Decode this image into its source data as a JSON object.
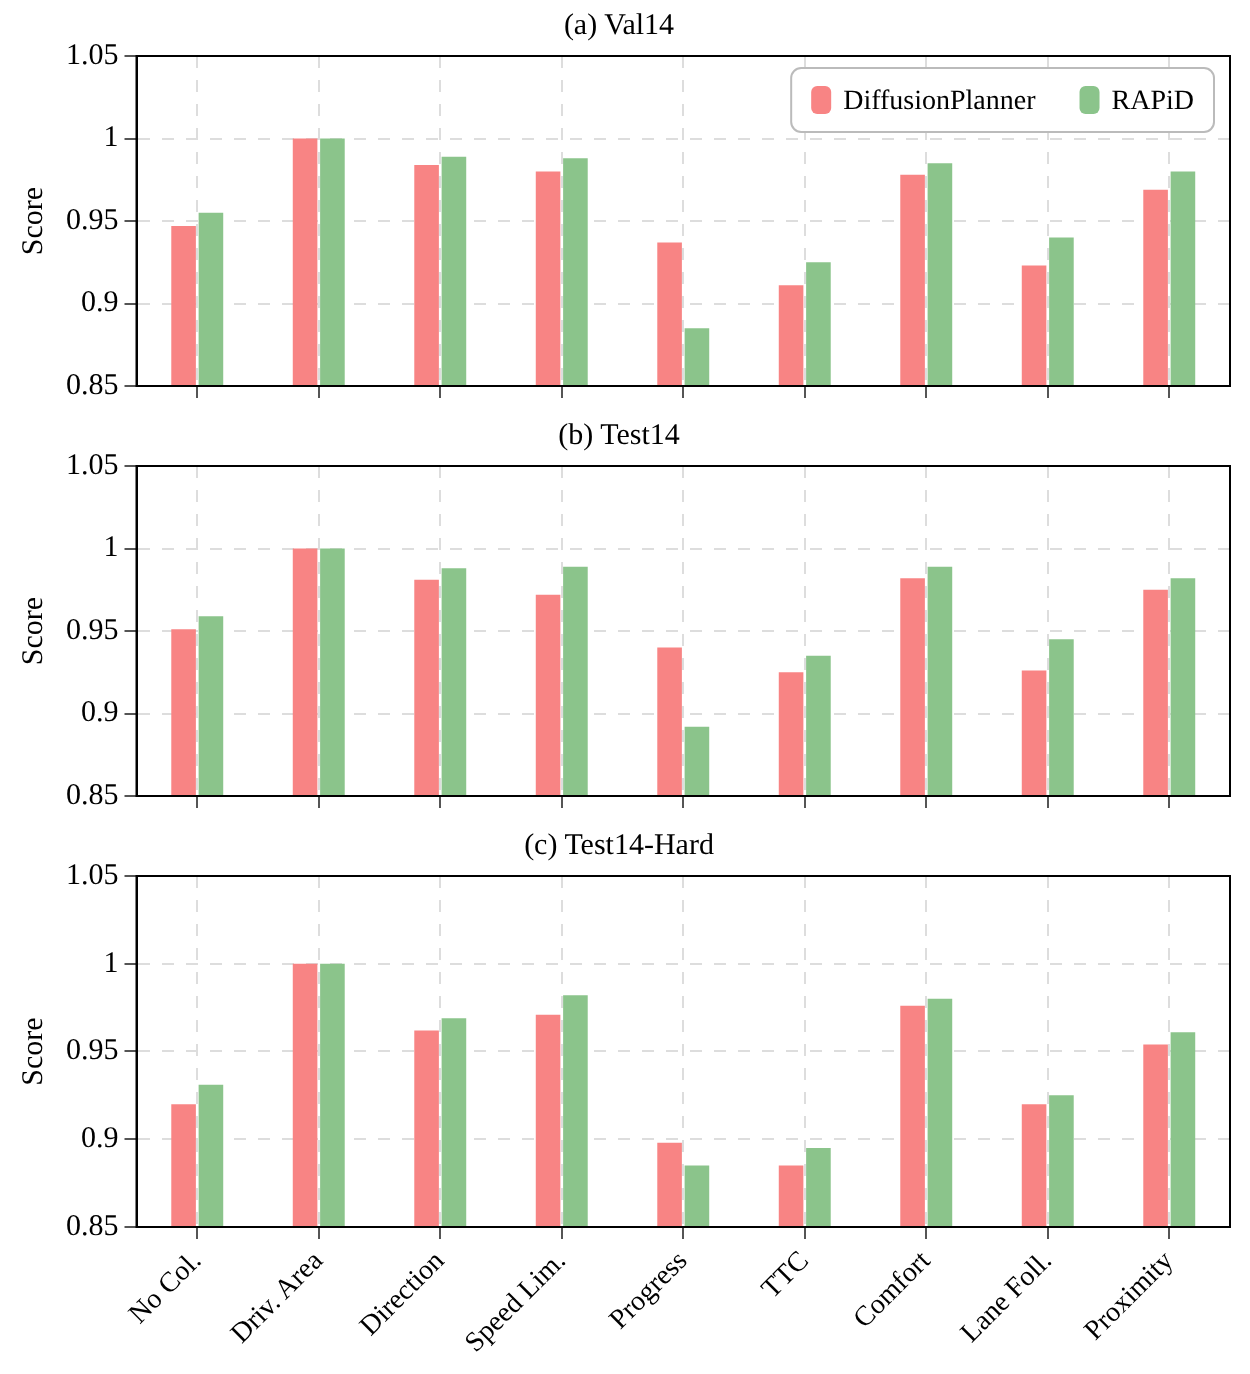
{
  "chart_data": [
    {
      "type": "bar",
      "title": "(a) Val14",
      "ylabel": "Score",
      "categories": [
        null,
        null,
        null,
        null,
        null,
        null,
        null,
        null,
        null
      ],
      "series": [
        {
          "name": "DiffusionPlanner",
          "color": "#f88484",
          "values": [
            0.947,
            1.0,
            0.984,
            0.98,
            0.937,
            0.911,
            0.978,
            0.923,
            0.969
          ]
        },
        {
          "name": "RAPiD",
          "color": "#8bc48b",
          "values": [
            0.955,
            1.0,
            0.989,
            0.988,
            0.885,
            0.925,
            0.985,
            0.94,
            0.98
          ]
        }
      ],
      "ylim": [
        0.85,
        1.05
      ],
      "yticks": [
        0.85,
        0.9,
        0.95,
        1,
        1.05
      ],
      "grid": true,
      "legend": "top right",
      "tick_labels": "y"
    },
    {
      "type": "bar",
      "title": "(b) Test14",
      "ylabel": "Score",
      "categories": [
        null,
        null,
        null,
        null,
        null,
        null,
        null,
        null,
        null
      ],
      "series": [
        {
          "color": "#f88484",
          "values": [
            0.951,
            1.0,
            0.981,
            0.972,
            0.94,
            0.925,
            0.982,
            0.926,
            0.975
          ]
        },
        {
          "color": "#8bc48b",
          "values": [
            0.959,
            1.0,
            0.988,
            0.989,
            0.892,
            0.935,
            0.989,
            0.945,
            0.982
          ]
        }
      ],
      "ylim": [
        0.85,
        1.05
      ],
      "yticks": [
        0.85,
        0.9,
        0.95,
        1,
        1.05
      ],
      "grid": true,
      "tick_labels": "y"
    },
    {
      "type": "bar",
      "title": "(c) Test14-Hard",
      "ylabel": "Score",
      "categories": [
        "No Col.",
        "Driv. Area",
        "Direction",
        "Speed Lim.",
        "Progress",
        "TTC",
        "Comfort",
        "Lane Foll.",
        "Proximity"
      ],
      "series": [
        {
          "color": "#f88484",
          "values": [
            0.92,
            1.0,
            0.962,
            0.971,
            0.898,
            0.885,
            0.976,
            0.92,
            0.954
          ]
        },
        {
          "color": "#8bc48b",
          "values": [
            0.931,
            1.0,
            0.969,
            0.982,
            0.885,
            0.895,
            0.98,
            0.925,
            0.961
          ]
        }
      ],
      "ylim": [
        0.85,
        1.05
      ],
      "yticks": [
        0.85,
        0.9,
        0.95,
        1,
        1.05
      ],
      "grid": true
    }
  ]
}
